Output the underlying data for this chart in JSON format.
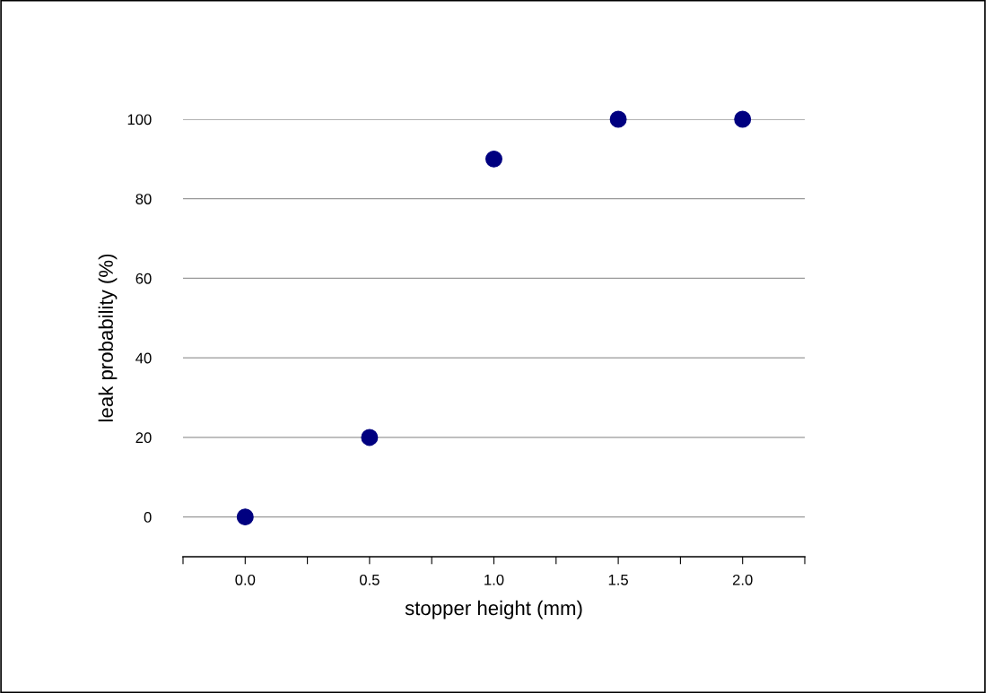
{
  "chart_data": {
    "type": "scatter",
    "xlabel": "stopper height (mm)",
    "ylabel": "leak probability (%)",
    "x": [
      0.0,
      0.5,
      1.0,
      1.5,
      2.0
    ],
    "series": [
      {
        "color": "#000080",
        "values": [
          0,
          20,
          90,
          100,
          100
        ]
      }
    ],
    "xlim": [
      -0.25,
      2.25
    ],
    "xticks": [
      {
        "value": -0.25,
        "label": null
      },
      {
        "value": 0,
        "label": "0.0"
      },
      {
        "value": 0.25,
        "label": null
      },
      {
        "value": 0.5,
        "label": "0.5"
      },
      {
        "value": 0.75,
        "label": null
      },
      {
        "value": 1,
        "label": "1.0"
      },
      {
        "value": 1.25,
        "label": null
      },
      {
        "value": 1.5,
        "label": "1.5"
      },
      {
        "value": 1.75,
        "label": null
      },
      {
        "value": 2,
        "label": "2.0"
      },
      {
        "value": 2.25,
        "label": null
      }
    ],
    "ylim": [
      -10,
      100
    ],
    "yticks": [
      0,
      20,
      40,
      60,
      80,
      100
    ],
    "grid": "y",
    "marker": "circle",
    "legend": false
  }
}
